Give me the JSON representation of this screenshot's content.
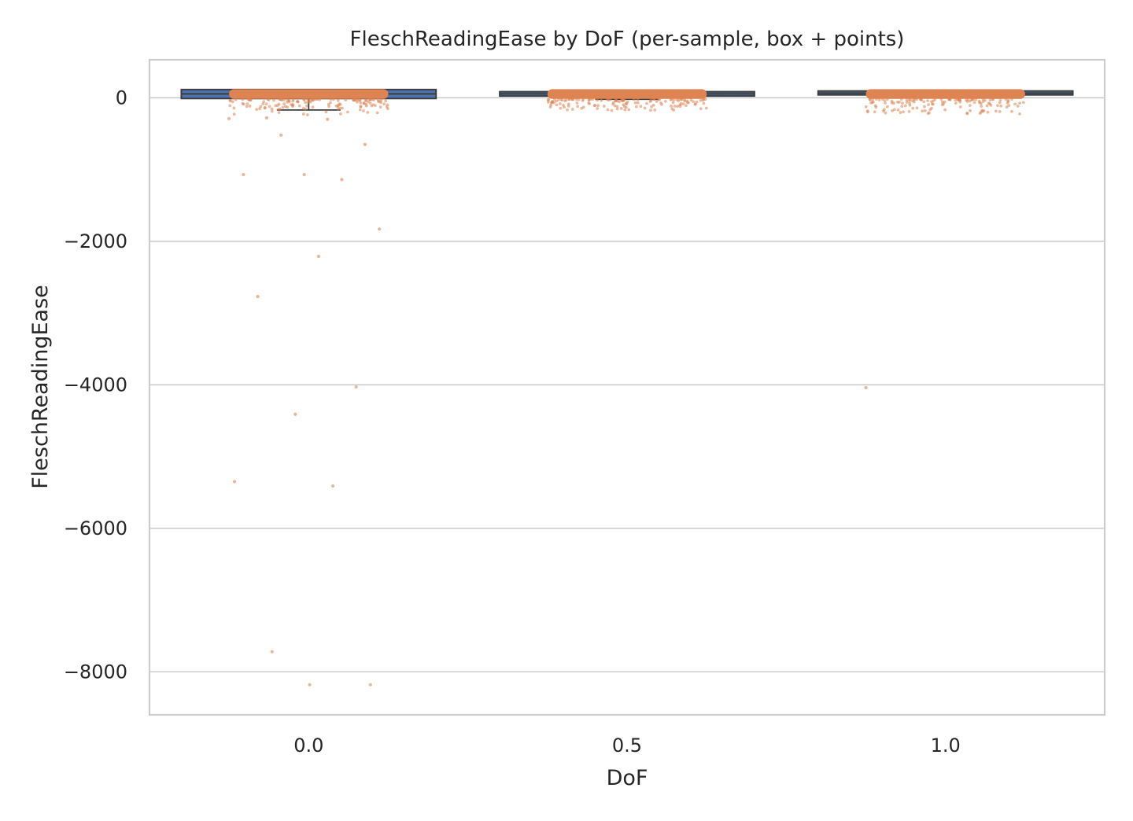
{
  "chart_data": {
    "type": "box",
    "title": "FleschReadingEase by DoF (per-sample, box + points)",
    "xlabel": "DoF",
    "ylabel": "FleschReadingEase",
    "categories": [
      "0.0",
      "0.5",
      "1.0"
    ],
    "ylim": [
      -8600,
      530
    ],
    "yticks": [
      0,
      -2000,
      -4000,
      -6000,
      -8000
    ],
    "ytick_labels": [
      "0",
      "−2000",
      "−4000",
      "−6000",
      "−8000"
    ],
    "grid": "horizontal",
    "colors": {
      "box_fill": "#4c72b0",
      "box_edge": "#3d3d3d",
      "points": "#dd8452"
    },
    "boxes": [
      {
        "category": "0.0",
        "q1": -10,
        "median": 55,
        "q3": 115,
        "whisker_low": -170,
        "whisker_high": 121
      },
      {
        "category": "0.5",
        "q1": 25,
        "median": 55,
        "q3": 85,
        "whisker_low": -20,
        "whisker_high": 121
      },
      {
        "category": "1.0",
        "q1": 40,
        "median": 65,
        "q3": 95,
        "whisker_low": 5,
        "whisker_high": 121
      }
    ],
    "outliers": [
      {
        "category": "0.0",
        "values": [
          -290,
          -300,
          -280,
          -650,
          -1070,
          -1070,
          -1140,
          -520,
          -1830,
          -2210,
          -2770,
          -4030,
          -4410,
          -5350,
          -5410,
          -7720,
          -8180,
          -8180
        ]
      },
      {
        "category": "1.0",
        "values": [
          -4040
        ]
      }
    ]
  }
}
